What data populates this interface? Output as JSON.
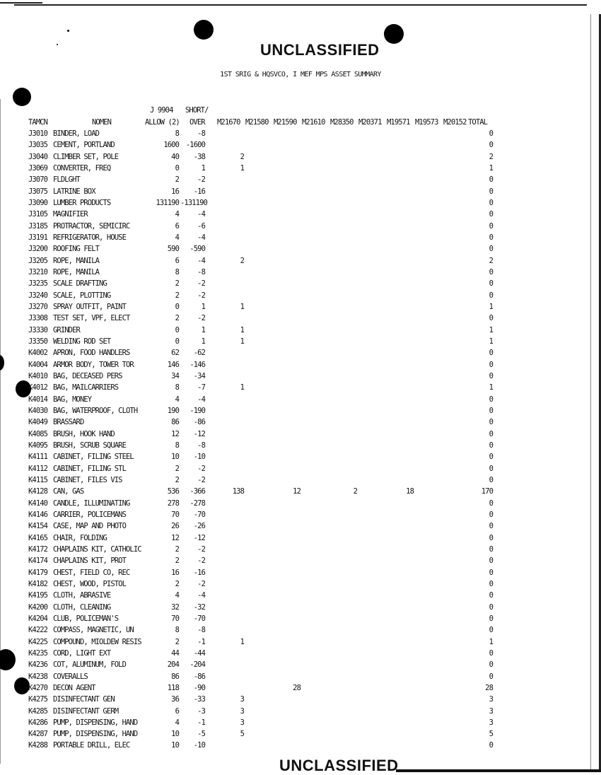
{
  "classification_top": "UNCLASSIFIED",
  "classification_bottom": "UNCLASSIFIED",
  "title": "1ST SRIG & HQSVCO, I MEF MPS ASSET SUMMARY",
  "header": {
    "pre_allow": "J 9904",
    "pre_short": "SHORT/",
    "tamcn": "TAMCN",
    "nomen": "NOMEN",
    "allow": "ALLOW (2)",
    "short": "OVER",
    "m_cols": [
      "M21670",
      "M21580",
      "M21590",
      "M21610",
      "M28350",
      "M20371",
      "M19571",
      "M19573",
      "M20152"
    ],
    "total": "TOTAL"
  },
  "rows": [
    {
      "tamcn": "J3010",
      "nomen": "BINDER, LOAD",
      "allow": "8",
      "short": "-8",
      "m": [
        "",
        "",
        "",
        "",
        "",
        "",
        "",
        "",
        ""
      ],
      "total": "0"
    },
    {
      "tamcn": "J3035",
      "nomen": "CEMENT, PORTLAND",
      "allow": "1600",
      "short": "-1600",
      "m": [
        "",
        "",
        "",
        "",
        "",
        "",
        "",
        "",
        ""
      ],
      "total": "0"
    },
    {
      "tamcn": "J3040",
      "nomen": "CLIMBER SET, POLE",
      "allow": "40",
      "short": "-38",
      "m": [
        "2",
        "",
        "",
        "",
        "",
        "",
        "",
        "",
        ""
      ],
      "total": "2"
    },
    {
      "tamcn": "J3069",
      "nomen": "CONVERTER, FREQ",
      "allow": "0",
      "short": "1",
      "m": [
        "1",
        "",
        "",
        "",
        "",
        "",
        "",
        "",
        ""
      ],
      "total": "1"
    },
    {
      "tamcn": "J3070",
      "nomen": "FLDLGHT",
      "allow": "2",
      "short": "-2",
      "m": [
        "",
        "",
        "",
        "",
        "",
        "",
        "",
        "",
        ""
      ],
      "total": "0"
    },
    {
      "tamcn": "J3075",
      "nomen": "LATRINE BOX",
      "allow": "16",
      "short": "-16",
      "m": [
        "",
        "",
        "",
        "",
        "",
        "",
        "",
        "",
        ""
      ],
      "total": "0"
    },
    {
      "tamcn": "J3090",
      "nomen": "LUMBER PRODUCTS",
      "allow": "131190",
      "short": "-131190",
      "m": [
        "",
        "",
        "",
        "",
        "",
        "",
        "",
        "",
        ""
      ],
      "total": "0"
    },
    {
      "tamcn": "J3105",
      "nomen": "MAGNIFIER",
      "allow": "4",
      "short": "-4",
      "m": [
        "",
        "",
        "",
        "",
        "",
        "",
        "",
        "",
        ""
      ],
      "total": "0"
    },
    {
      "tamcn": "J3185",
      "nomen": "PROTRACTOR, SEMICIRC",
      "allow": "6",
      "short": "-6",
      "m": [
        "",
        "",
        "",
        "",
        "",
        "",
        "",
        "",
        ""
      ],
      "total": "0"
    },
    {
      "tamcn": "J3191",
      "nomen": "REFRIGERATOR, HOUSE",
      "allow": "4",
      "short": "-4",
      "m": [
        "",
        "",
        "",
        "",
        "",
        "",
        "",
        "",
        ""
      ],
      "total": "0"
    },
    {
      "tamcn": "J3200",
      "nomen": "ROOFING FELT",
      "allow": "590",
      "short": "-590",
      "m": [
        "",
        "",
        "",
        "",
        "",
        "",
        "",
        "",
        ""
      ],
      "total": "0"
    },
    {
      "tamcn": "J3205",
      "nomen": "ROPE, MANILA",
      "allow": "6",
      "short": "-4",
      "m": [
        "2",
        "",
        "",
        "",
        "",
        "",
        "",
        "",
        ""
      ],
      "total": "2"
    },
    {
      "tamcn": "J3210",
      "nomen": "ROPE, MANILA",
      "allow": "8",
      "short": "-8",
      "m": [
        "",
        "",
        "",
        "",
        "",
        "",
        "",
        "",
        ""
      ],
      "total": "0"
    },
    {
      "tamcn": "J3235",
      "nomen": "SCALE DRAFTING",
      "allow": "2",
      "short": "-2",
      "m": [
        "",
        "",
        "",
        "",
        "",
        "",
        "",
        "",
        ""
      ],
      "total": "0"
    },
    {
      "tamcn": "J3240",
      "nomen": "SCALE, PLOTTING",
      "allow": "2",
      "short": "-2",
      "m": [
        "",
        "",
        "",
        "",
        "",
        "",
        "",
        "",
        ""
      ],
      "total": "0"
    },
    {
      "tamcn": "J3270",
      "nomen": "SPRAY OUTFIT, PAINT",
      "allow": "0",
      "short": "1",
      "m": [
        "1",
        "",
        "",
        "",
        "",
        "",
        "",
        "",
        ""
      ],
      "total": "1"
    },
    {
      "tamcn": "J3308",
      "nomen": "TEST SET, VPF, ELECT",
      "allow": "2",
      "short": "-2",
      "m": [
        "",
        "",
        "",
        "",
        "",
        "",
        "",
        "",
        ""
      ],
      "total": "0"
    },
    {
      "tamcn": "J3330",
      "nomen": "GRINDER",
      "allow": "0",
      "short": "1",
      "m": [
        "1",
        "",
        "",
        "",
        "",
        "",
        "",
        "",
        ""
      ],
      "total": "1"
    },
    {
      "tamcn": "J3350",
      "nomen": "WELDING ROD SET",
      "allow": "0",
      "short": "1",
      "m": [
        "1",
        "",
        "",
        "",
        "",
        "",
        "",
        "",
        ""
      ],
      "total": "1"
    },
    {
      "tamcn": "K4002",
      "nomen": "APRON, FOOD HANDLERS",
      "allow": "62",
      "short": "-62",
      "m": [
        "",
        "",
        "",
        "",
        "",
        "",
        "",
        "",
        ""
      ],
      "total": "0"
    },
    {
      "tamcn": "K4004",
      "nomen": "ARMOR BODY, TOWER TOR",
      "allow": "146",
      "short": "-146",
      "m": [
        "",
        "",
        "",
        "",
        "",
        "",
        "",
        "",
        ""
      ],
      "total": "0"
    },
    {
      "tamcn": "K4010",
      "nomen": "BAG, DECEASED PERS",
      "allow": "34",
      "short": "-34",
      "m": [
        "",
        "",
        "",
        "",
        "",
        "",
        "",
        "",
        ""
      ],
      "total": "0"
    },
    {
      "tamcn": "K4012",
      "nomen": "BAG, MAILCARRIERS",
      "allow": "8",
      "short": "-7",
      "m": [
        "1",
        "",
        "",
        "",
        "",
        "",
        "",
        "",
        ""
      ],
      "total": "1"
    },
    {
      "tamcn": "K4014",
      "nomen": "BAG, MONEY",
      "allow": "4",
      "short": "-4",
      "m": [
        "",
        "",
        "",
        "",
        "",
        "",
        "",
        "",
        ""
      ],
      "total": "0"
    },
    {
      "tamcn": "K4030",
      "nomen": "BAG, WATERPROOF, CLOTH",
      "allow": "190",
      "short": "-190",
      "m": [
        "",
        "",
        "",
        "",
        "",
        "",
        "",
        "",
        ""
      ],
      "total": "0"
    },
    {
      "tamcn": "K4049",
      "nomen": "BRASSARD",
      "allow": "86",
      "short": "-86",
      "m": [
        "",
        "",
        "",
        "",
        "",
        "",
        "",
        "",
        ""
      ],
      "total": "0"
    },
    {
      "tamcn": "K4085",
      "nomen": "BRUSH, HOOK HAND",
      "allow": "12",
      "short": "-12",
      "m": [
        "",
        "",
        "",
        "",
        "",
        "",
        "",
        "",
        ""
      ],
      "total": "0"
    },
    {
      "tamcn": "K4095",
      "nomen": "BRUSH, SCRUB SQUARE",
      "allow": "8",
      "short": "-8",
      "m": [
        "",
        "",
        "",
        "",
        "",
        "",
        "",
        "",
        ""
      ],
      "total": "0"
    },
    {
      "tamcn": "K4111",
      "nomen": "CABINET, FILING STEEL",
      "allow": "10",
      "short": "-10",
      "m": [
        "",
        "",
        "",
        "",
        "",
        "",
        "",
        "",
        ""
      ],
      "total": "0"
    },
    {
      "tamcn": "K4112",
      "nomen": "CABINET, FILING STL",
      "allow": "2",
      "short": "-2",
      "m": [
        "",
        "",
        "",
        "",
        "",
        "",
        "",
        "",
        ""
      ],
      "total": "0"
    },
    {
      "tamcn": "K4115",
      "nomen": "CABINET, FILES VIS",
      "allow": "2",
      "short": "-2",
      "m": [
        "",
        "",
        "",
        "",
        "",
        "",
        "",
        "",
        ""
      ],
      "total": "0"
    },
    {
      "tamcn": "K4128",
      "nomen": "CAN, GAS",
      "allow": "536",
      "short": "-366",
      "m": [
        "138",
        "",
        "12",
        "",
        "2",
        "",
        "18",
        "",
        ""
      ],
      "total": "170"
    },
    {
      "tamcn": "K4140",
      "nomen": "CANDLE, ILLUMINATING",
      "allow": "278",
      "short": "-278",
      "m": [
        "",
        "",
        "",
        "",
        "",
        "",
        "",
        "",
        ""
      ],
      "total": "0"
    },
    {
      "tamcn": "K4146",
      "nomen": "CARRIER, POLICEMANS",
      "allow": "70",
      "short": "-70",
      "m": [
        "",
        "",
        "",
        "",
        "",
        "",
        "",
        "",
        ""
      ],
      "total": "0"
    },
    {
      "tamcn": "K4154",
      "nomen": "CASE, MAP AND PHOTO",
      "allow": "26",
      "short": "-26",
      "m": [
        "",
        "",
        "",
        "",
        "",
        "",
        "",
        "",
        ""
      ],
      "total": "0"
    },
    {
      "tamcn": "K4165",
      "nomen": "CHAIR, FOLDING",
      "allow": "12",
      "short": "-12",
      "m": [
        "",
        "",
        "",
        "",
        "",
        "",
        "",
        "",
        ""
      ],
      "total": "0"
    },
    {
      "tamcn": "K4172",
      "nomen": "CHAPLAINS KIT, CATHOLIC",
      "allow": "2",
      "short": "-2",
      "m": [
        "",
        "",
        "",
        "",
        "",
        "",
        "",
        "",
        ""
      ],
      "total": "0"
    },
    {
      "tamcn": "K4174",
      "nomen": "CHAPLAINS KIT, PROT",
      "allow": "2",
      "short": "-2",
      "m": [
        "",
        "",
        "",
        "",
        "",
        "",
        "",
        "",
        ""
      ],
      "total": "0"
    },
    {
      "tamcn": "K4179",
      "nomen": "CHEST, FIELD CO, REC",
      "allow": "16",
      "short": "-16",
      "m": [
        "",
        "",
        "",
        "",
        "",
        "",
        "",
        "",
        ""
      ],
      "total": "0"
    },
    {
      "tamcn": "K4182",
      "nomen": "CHEST, WOOD, PISTOL",
      "allow": "2",
      "short": "-2",
      "m": [
        "",
        "",
        "",
        "",
        "",
        "",
        "",
        "",
        ""
      ],
      "total": "0"
    },
    {
      "tamcn": "K4195",
      "nomen": "CLOTH, ABRASIVE",
      "allow": "4",
      "short": "-4",
      "m": [
        "",
        "",
        "",
        "",
        "",
        "",
        "",
        "",
        ""
      ],
      "total": "0"
    },
    {
      "tamcn": "K4200",
      "nomen": "CLOTH, CLEANING",
      "allow": "32",
      "short": "-32",
      "m": [
        "",
        "",
        "",
        "",
        "",
        "",
        "",
        "",
        ""
      ],
      "total": "0"
    },
    {
      "tamcn": "K4204",
      "nomen": "CLUB, POLICEMAN'S",
      "allow": "70",
      "short": "-70",
      "m": [
        "",
        "",
        "",
        "",
        "",
        "",
        "",
        "",
        ""
      ],
      "total": "0"
    },
    {
      "tamcn": "K4222",
      "nomen": "COMPASS, MAGNETIC, UN",
      "allow": "8",
      "short": "-8",
      "m": [
        "",
        "",
        "",
        "",
        "",
        "",
        "",
        "",
        ""
      ],
      "total": "0"
    },
    {
      "tamcn": "K4225",
      "nomen": "COMPOUND, MIOLDEW RESIS",
      "allow": "2",
      "short": "-1",
      "m": [
        "1",
        "",
        "",
        "",
        "",
        "",
        "",
        "",
        ""
      ],
      "total": "1"
    },
    {
      "tamcn": "K4235",
      "nomen": "CORD, LIGHT EXT",
      "allow": "44",
      "short": "-44",
      "m": [
        "",
        "",
        "",
        "",
        "",
        "",
        "",
        "",
        ""
      ],
      "total": "0"
    },
    {
      "tamcn": "K4236",
      "nomen": "COT, ALUMINUM, FOLD",
      "allow": "204",
      "short": "-204",
      "m": [
        "",
        "",
        "",
        "",
        "",
        "",
        "",
        "",
        ""
      ],
      "total": "0"
    },
    {
      "tamcn": "K4238",
      "nomen": "COVERALLS",
      "allow": "86",
      "short": "-86",
      "m": [
        "",
        "",
        "",
        "",
        "",
        "",
        "",
        "",
        ""
      ],
      "total": "0"
    },
    {
      "tamcn": "K4270",
      "nomen": "DECON AGENT",
      "allow": "118",
      "short": "-90",
      "m": [
        "",
        "",
        "28",
        "",
        "",
        "",
        "",
        "",
        ""
      ],
      "total": "28"
    },
    {
      "tamcn": "K4275",
      "nomen": "DISINFECTANT GEN",
      "allow": "36",
      "short": "-33",
      "m": [
        "3",
        "",
        "",
        "",
        "",
        "",
        "",
        "",
        ""
      ],
      "total": "3"
    },
    {
      "tamcn": "K4285",
      "nomen": "DISINFECTANT GERM",
      "allow": "6",
      "short": "-3",
      "m": [
        "3",
        "",
        "",
        "",
        "",
        "",
        "",
        "",
        ""
      ],
      "total": "3"
    },
    {
      "tamcn": "K4286",
      "nomen": "PUMP, DISPENSING, HAND",
      "allow": "4",
      "short": "-1",
      "m": [
        "3",
        "",
        "",
        "",
        "",
        "",
        "",
        "",
        ""
      ],
      "total": "3"
    },
    {
      "tamcn": "K4287",
      "nomen": "PUMP, DISPENSING, HAND",
      "allow": "10",
      "short": "-5",
      "m": [
        "5",
        "",
        "",
        "",
        "",
        "",
        "",
        "",
        ""
      ],
      "total": "5"
    },
    {
      "tamcn": "K4288",
      "nomen": "PORTABLE DRILL, ELEC",
      "allow": "10",
      "short": "-10",
      "m": [
        "",
        "",
        "",
        "",
        "",
        "",
        "",
        "",
        ""
      ],
      "total": "0"
    }
  ]
}
